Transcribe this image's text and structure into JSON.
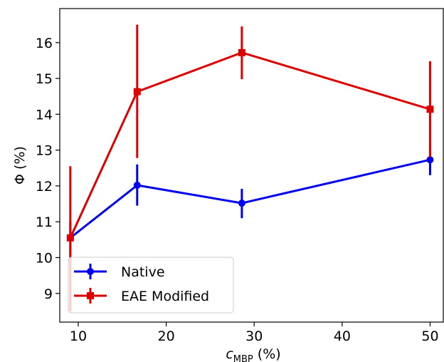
{
  "chart_data": {
    "type": "line",
    "title": "",
    "xlabel": "c",
    "xlabel_sub": "MBP",
    "xlabel_unit": " (%)",
    "ylabel": "Φ (%)",
    "xlim": [
      7.9,
      51.5
    ],
    "ylim": [
      8.2,
      16.95
    ],
    "xticks": [
      10,
      20,
      30,
      40,
      50
    ],
    "yticks": [
      9,
      10,
      11,
      12,
      13,
      14,
      15,
      16
    ],
    "grid": false,
    "legend_position": "bottom-left",
    "series": [
      {
        "name": "Native",
        "color": "#0000ee",
        "marker": "circle",
        "x": [
          9.1,
          16.7,
          28.6,
          50.0
        ],
        "y": [
          10.55,
          12.02,
          11.52,
          12.73
        ],
        "yerr_low": [
          10.0,
          11.45,
          11.1,
          12.3
        ],
        "yerr_high": [
          11.0,
          12.6,
          11.92,
          13.15
        ]
      },
      {
        "name": "EAE Modified",
        "color": "#dd0000",
        "marker": "square",
        "x": [
          9.1,
          16.7,
          28.6,
          50.0
        ],
        "y": [
          10.55,
          14.63,
          15.72,
          14.14
        ],
        "yerr_low": [
          8.5,
          12.78,
          14.98,
          12.8
        ],
        "yerr_high": [
          12.55,
          16.5,
          16.45,
          15.48
        ]
      }
    ]
  }
}
